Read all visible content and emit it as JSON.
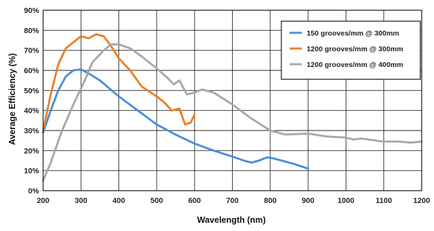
{
  "chart_data": {
    "type": "line",
    "title": "",
    "xlabel": "Wavelength (nm)",
    "ylabel": "Average Efficiency (%)",
    "xlim": [
      200,
      1200
    ],
    "ylim": [
      0,
      90
    ],
    "x_ticks": [
      200,
      300,
      400,
      500,
      600,
      700,
      800,
      900,
      1000,
      1100,
      1200
    ],
    "y_ticks": [
      0,
      10,
      20,
      30,
      40,
      50,
      60,
      70,
      80,
      90
    ],
    "x_tick_labels": [
      "200",
      "300",
      "400",
      "500",
      "600",
      "700",
      "800",
      "900",
      "1000",
      "1100",
      "1200"
    ],
    "y_tick_labels": [
      "0%",
      "10%",
      "20%",
      "30%",
      "40%",
      "50%",
      "60%",
      "70%",
      "80%",
      "90%"
    ],
    "grid": true,
    "legend_position": "top-right",
    "series": [
      {
        "name": "150 grooves/mm @ 300mm",
        "color": "#4a90d9",
        "points": [
          [
            200,
            29
          ],
          [
            220,
            40
          ],
          [
            240,
            50
          ],
          [
            260,
            57
          ],
          [
            280,
            60
          ],
          [
            300,
            60.5
          ],
          [
            320,
            58.5
          ],
          [
            350,
            55
          ],
          [
            400,
            47
          ],
          [
            450,
            40
          ],
          [
            500,
            33
          ],
          [
            550,
            28
          ],
          [
            600,
            23.5
          ],
          [
            650,
            20
          ],
          [
            700,
            17
          ],
          [
            730,
            15
          ],
          [
            750,
            14
          ],
          [
            770,
            15
          ],
          [
            790,
            16.5
          ],
          [
            800,
            16.5
          ],
          [
            830,
            15
          ],
          [
            860,
            13.5
          ],
          [
            900,
            11
          ]
        ]
      },
      {
        "name": "1200 grooves/mm @ 300mm",
        "color": "#e8822a",
        "points": [
          [
            200,
            30
          ],
          [
            220,
            48
          ],
          [
            240,
            63
          ],
          [
            260,
            71
          ],
          [
            280,
            74
          ],
          [
            300,
            77
          ],
          [
            320,
            76
          ],
          [
            340,
            78
          ],
          [
            360,
            77
          ],
          [
            380,
            72
          ],
          [
            400,
            66
          ],
          [
            430,
            60
          ],
          [
            460,
            52
          ],
          [
            500,
            47
          ],
          [
            520,
            44
          ],
          [
            540,
            40
          ],
          [
            560,
            41
          ],
          [
            575,
            33
          ],
          [
            590,
            34
          ],
          [
            600,
            38
          ]
        ]
      },
      {
        "name": "1200 grooves/mm @ 400mm",
        "color": "#a8a8a8",
        "points": [
          [
            200,
            5
          ],
          [
            220,
            14
          ],
          [
            250,
            30
          ],
          [
            280,
            43
          ],
          [
            310,
            55
          ],
          [
            330,
            64
          ],
          [
            360,
            70
          ],
          [
            380,
            73
          ],
          [
            400,
            73
          ],
          [
            430,
            71
          ],
          [
            460,
            67
          ],
          [
            500,
            61
          ],
          [
            530,
            56
          ],
          [
            545,
            53
          ],
          [
            560,
            55
          ],
          [
            580,
            48
          ],
          [
            600,
            49
          ],
          [
            620,
            50.5
          ],
          [
            650,
            49
          ],
          [
            700,
            43
          ],
          [
            750,
            36
          ],
          [
            800,
            30
          ],
          [
            840,
            28
          ],
          [
            900,
            28.5
          ],
          [
            950,
            27
          ],
          [
            1000,
            26.5
          ],
          [
            1020,
            25.5
          ],
          [
            1040,
            26
          ],
          [
            1080,
            25
          ],
          [
            1100,
            24.5
          ],
          [
            1140,
            24.5
          ],
          [
            1170,
            24
          ],
          [
            1200,
            24.5
          ]
        ]
      }
    ]
  }
}
